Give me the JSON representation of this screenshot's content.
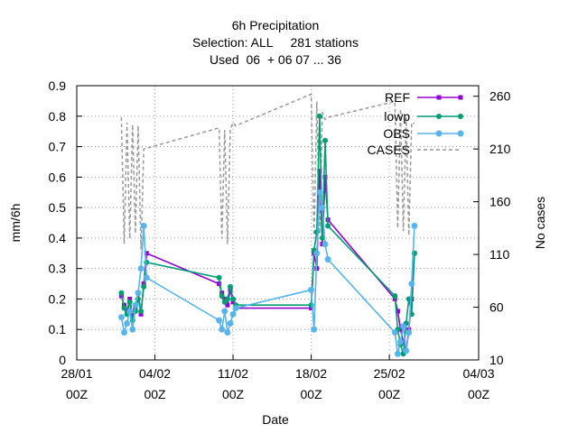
{
  "chart_data": {
    "type": "line",
    "title": [
      "6h Precipitation",
      "Selection: ALL     281 stations",
      "Used  06  + 06 07 ... 36"
    ],
    "xlabel": "Date",
    "ylabel": "mm/6h",
    "y2label": "No cases",
    "xlim": [
      "2024-01-28 00Z",
      "2024-03-04 00Z"
    ],
    "x_ticks": [
      {
        "date": "2024-01-28",
        "line1": "28/01",
        "line2": "00Z"
      },
      {
        "date": "2024-02-04",
        "line1": "04/02",
        "line2": "00Z"
      },
      {
        "date": "2024-02-11",
        "line1": "11/02",
        "line2": "00Z"
      },
      {
        "date": "2024-02-18",
        "line1": "18/02",
        "line2": "00Z"
      },
      {
        "date": "2024-02-25",
        "line1": "25/02",
        "line2": "00Z"
      },
      {
        "date": "2024-03-04",
        "line1": "04/03",
        "line2": "00Z"
      }
    ],
    "ylim": [
      0,
      0.9
    ],
    "y_ticks": [
      "0",
      "0.1",
      "0.2",
      "0.3",
      "0.4",
      "0.5",
      "0.6",
      "0.7",
      "0.8",
      "0.9"
    ],
    "y2lim": [
      10,
      270
    ],
    "y2_ticks": [
      "10",
      "60",
      "110",
      "160",
      "210",
      "260"
    ],
    "grid": true,
    "legend_position": "top-right",
    "series": [
      {
        "name": "REF",
        "color": "#9400d3",
        "marker": "square",
        "axis": "left",
        "x": [
          "2024-02-01 00Z",
          "2024-02-01 06Z",
          "2024-02-01 12Z",
          "2024-02-01 18Z",
          "2024-02-02 00Z",
          "2024-02-02 06Z",
          "2024-02-02 12Z",
          "2024-02-02 18Z",
          "2024-02-03 00Z",
          "2024-02-03 06Z",
          "2024-02-09 18Z",
          "2024-02-10 00Z",
          "2024-02-10 06Z",
          "2024-02-10 12Z",
          "2024-02-10 18Z",
          "2024-02-11 00Z",
          "2024-02-11 06Z",
          "2024-02-18 00Z",
          "2024-02-18 06Z",
          "2024-02-18 12Z",
          "2024-02-18 18Z",
          "2024-02-19 00Z",
          "2024-02-19 06Z",
          "2024-02-19 12Z",
          "2024-02-25 12Z",
          "2024-02-25 18Z",
          "2024-02-26 00Z",
          "2024-02-26 06Z",
          "2024-02-26 12Z",
          "2024-02-26 18Z",
          "2024-02-27 00Z",
          "2024-02-27 06Z"
        ],
        "y": [
          0.21,
          0.18,
          0.16,
          0.2,
          0.14,
          0.17,
          0.22,
          0.15,
          0.25,
          0.35,
          0.25,
          0.22,
          0.2,
          0.18,
          0.23,
          0.19,
          0.17,
          0.17,
          0.35,
          0.3,
          0.62,
          0.38,
          0.6,
          0.46,
          0.2,
          0.16,
          0.1,
          0.06,
          0.03,
          0.1,
          0.2,
          0.35
        ]
      },
      {
        "name": "lowp",
        "color": "#009e73",
        "marker": "circle",
        "axis": "left",
        "x": [
          "2024-02-01 00Z",
          "2024-02-01 06Z",
          "2024-02-01 12Z",
          "2024-02-01 18Z",
          "2024-02-02 00Z",
          "2024-02-02 06Z",
          "2024-02-02 12Z",
          "2024-02-02 18Z",
          "2024-02-03 00Z",
          "2024-02-03 06Z",
          "2024-02-09 18Z",
          "2024-02-10 00Z",
          "2024-02-10 06Z",
          "2024-02-10 12Z",
          "2024-02-10 18Z",
          "2024-02-11 00Z",
          "2024-02-11 06Z",
          "2024-02-18 00Z",
          "2024-02-18 06Z",
          "2024-02-18 12Z",
          "2024-02-18 18Z",
          "2024-02-19 00Z",
          "2024-02-19 06Z",
          "2024-02-19 12Z",
          "2024-02-25 12Z",
          "2024-02-25 18Z",
          "2024-02-26 00Z",
          "2024-02-26 06Z",
          "2024-02-26 12Z",
          "2024-02-26 18Z",
          "2024-02-27 00Z",
          "2024-02-27 06Z"
        ],
        "y": [
          0.22,
          0.17,
          0.15,
          0.19,
          0.13,
          0.16,
          0.2,
          0.16,
          0.24,
          0.32,
          0.27,
          0.21,
          0.19,
          0.2,
          0.24,
          0.2,
          0.18,
          0.18,
          0.36,
          0.42,
          0.8,
          0.4,
          0.72,
          0.44,
          0.21,
          0.1,
          0.05,
          0.02,
          0.12,
          0.2,
          0.15,
          0.35
        ]
      },
      {
        "name": "OBS",
        "color": "#56b4e9",
        "marker": "star",
        "axis": "left",
        "x": [
          "2024-02-01 00Z",
          "2024-02-01 06Z",
          "2024-02-01 12Z",
          "2024-02-01 18Z",
          "2024-02-02 00Z",
          "2024-02-02 06Z",
          "2024-02-02 12Z",
          "2024-02-02 18Z",
          "2024-02-03 00Z",
          "2024-02-03 06Z",
          "2024-02-09 18Z",
          "2024-02-10 00Z",
          "2024-02-10 06Z",
          "2024-02-10 12Z",
          "2024-02-10 18Z",
          "2024-02-11 00Z",
          "2024-02-11 06Z",
          "2024-02-18 00Z",
          "2024-02-18 06Z",
          "2024-02-18 12Z",
          "2024-02-18 18Z",
          "2024-02-19 00Z",
          "2024-02-19 06Z",
          "2024-02-19 12Z",
          "2024-02-25 12Z",
          "2024-02-25 18Z",
          "2024-02-26 00Z",
          "2024-02-26 06Z",
          "2024-02-26 12Z",
          "2024-02-26 18Z",
          "2024-02-27 00Z",
          "2024-02-27 06Z"
        ],
        "y": [
          0.14,
          0.09,
          0.12,
          0.16,
          0.1,
          0.18,
          0.22,
          0.3,
          0.44,
          0.27,
          0.13,
          0.1,
          0.16,
          0.09,
          0.12,
          0.15,
          0.17,
          0.23,
          0.1,
          0.35,
          0.55,
          0.5,
          0.38,
          0.33,
          0.09,
          0.02,
          0.06,
          0.11,
          0.03,
          0.09,
          0.25,
          0.44
        ]
      },
      {
        "name": "CASES",
        "color": "#999999",
        "dashed": true,
        "axis": "right",
        "x": [
          "2024-02-01 00Z",
          "2024-02-01 06Z",
          "2024-02-01 12Z",
          "2024-02-01 18Z",
          "2024-02-02 00Z",
          "2024-02-02 06Z",
          "2024-02-02 12Z",
          "2024-02-02 18Z",
          "2024-02-03 00Z",
          "2024-02-09 18Z",
          "2024-02-10 00Z",
          "2024-02-10 06Z",
          "2024-02-10 12Z",
          "2024-02-10 18Z",
          "2024-02-11 00Z",
          "2024-02-11 06Z",
          "2024-02-18 00Z",
          "2024-02-18 06Z",
          "2024-02-18 12Z",
          "2024-02-18 18Z",
          "2024-02-19 00Z",
          "2024-02-19 06Z",
          "2024-02-19 12Z",
          "2024-02-25 12Z",
          "2024-02-25 18Z",
          "2024-02-26 00Z",
          "2024-02-26 06Z",
          "2024-02-26 12Z",
          "2024-02-26 18Z",
          "2024-02-27 00Z",
          "2024-02-27 06Z"
        ],
        "y": [
          240,
          120,
          235,
          125,
          233,
          130,
          232,
          115,
          210,
          230,
          125,
          228,
          120,
          229,
          235,
          232,
          262,
          125,
          255,
          130,
          245,
          238,
          240,
          255,
          135,
          248,
          132,
          240,
          128,
          235,
          234
        ]
      }
    ]
  }
}
